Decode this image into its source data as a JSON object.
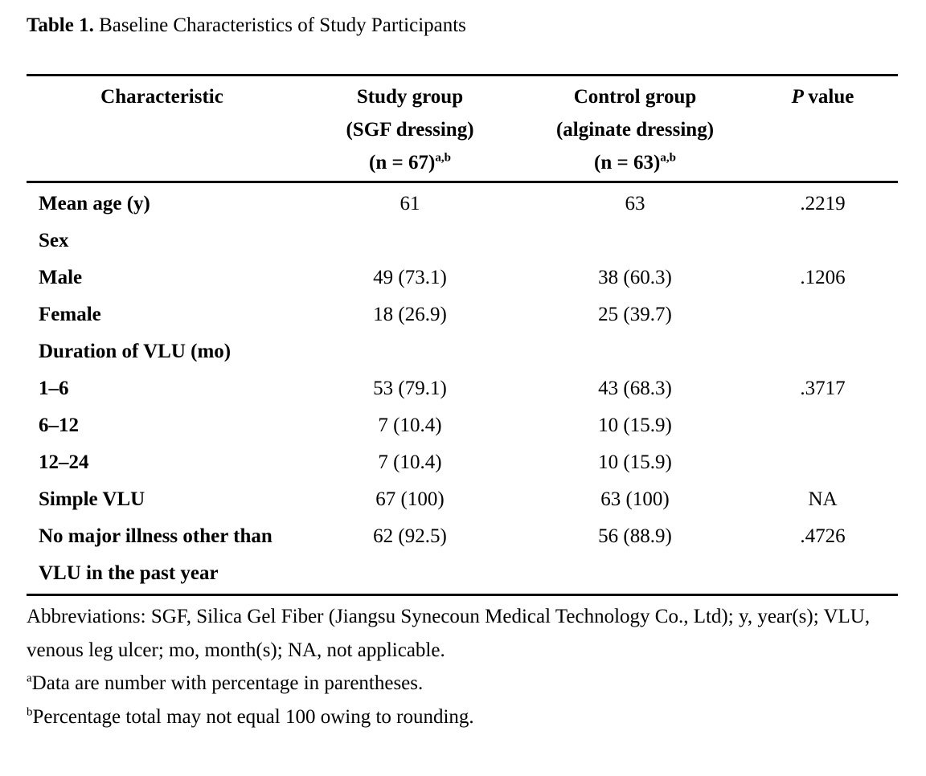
{
  "title": {
    "label": "Table 1.",
    "text": "Baseline Characteristics of Study Participants"
  },
  "table": {
    "headers": {
      "characteristic": "Characteristic",
      "study_group_lines": [
        "Study group",
        "(SGF dressing)",
        "(n = 67)"
      ],
      "study_group_sup": "a,b",
      "control_group_lines": [
        "Control group",
        "(alginate dressing)",
        "(n = 63)"
      ],
      "control_group_sup": "a,b",
      "p_italic": "P",
      "p_rest": "value"
    },
    "rows": [
      {
        "label": "Mean age (y)",
        "study": "61",
        "control": "63",
        "p": ".2219"
      },
      {
        "label": "Sex",
        "study": "",
        "control": "",
        "p": ""
      },
      {
        "label": "Male",
        "study": "49 (73.1)",
        "control": "38 (60.3)",
        "p": ".1206"
      },
      {
        "label": "Female",
        "study": "18 (26.9)",
        "control": "25 (39.7)",
        "p": ""
      },
      {
        "label": "Duration of VLU (mo)",
        "study": "",
        "control": "",
        "p": ""
      },
      {
        "label": "1–6",
        "study": "53 (79.1)",
        "control": "43 (68.3)",
        "p": ".3717"
      },
      {
        "label": "6–12",
        "study": "7 (10.4)",
        "control": "10 (15.9)",
        "p": ""
      },
      {
        "label": "12–24",
        "study": "7 (10.4)",
        "control": "10 (15.9)",
        "p": ""
      },
      {
        "label": "Simple VLU",
        "study": "67 (100)",
        "control": "63 (100)",
        "p": "NA"
      },
      {
        "label": "No major illness other than VLU in the past year",
        "study": "62 (92.5)",
        "control": "56 (88.9)",
        "p": ".4726"
      }
    ]
  },
  "footnotes": {
    "abbreviations": "Abbreviations: SGF, Silica Gel Fiber (Jiangsu Synecoun Medical Technology Co., Ltd); y, year(s); VLU, venous leg ulcer; mo, month(s); NA, not applicable.",
    "a_marker": "a",
    "a_text": "Data are number with percentage in parentheses.",
    "b_marker": "b",
    "b_text": "Percentage total may not equal 100 owing to rounding."
  }
}
